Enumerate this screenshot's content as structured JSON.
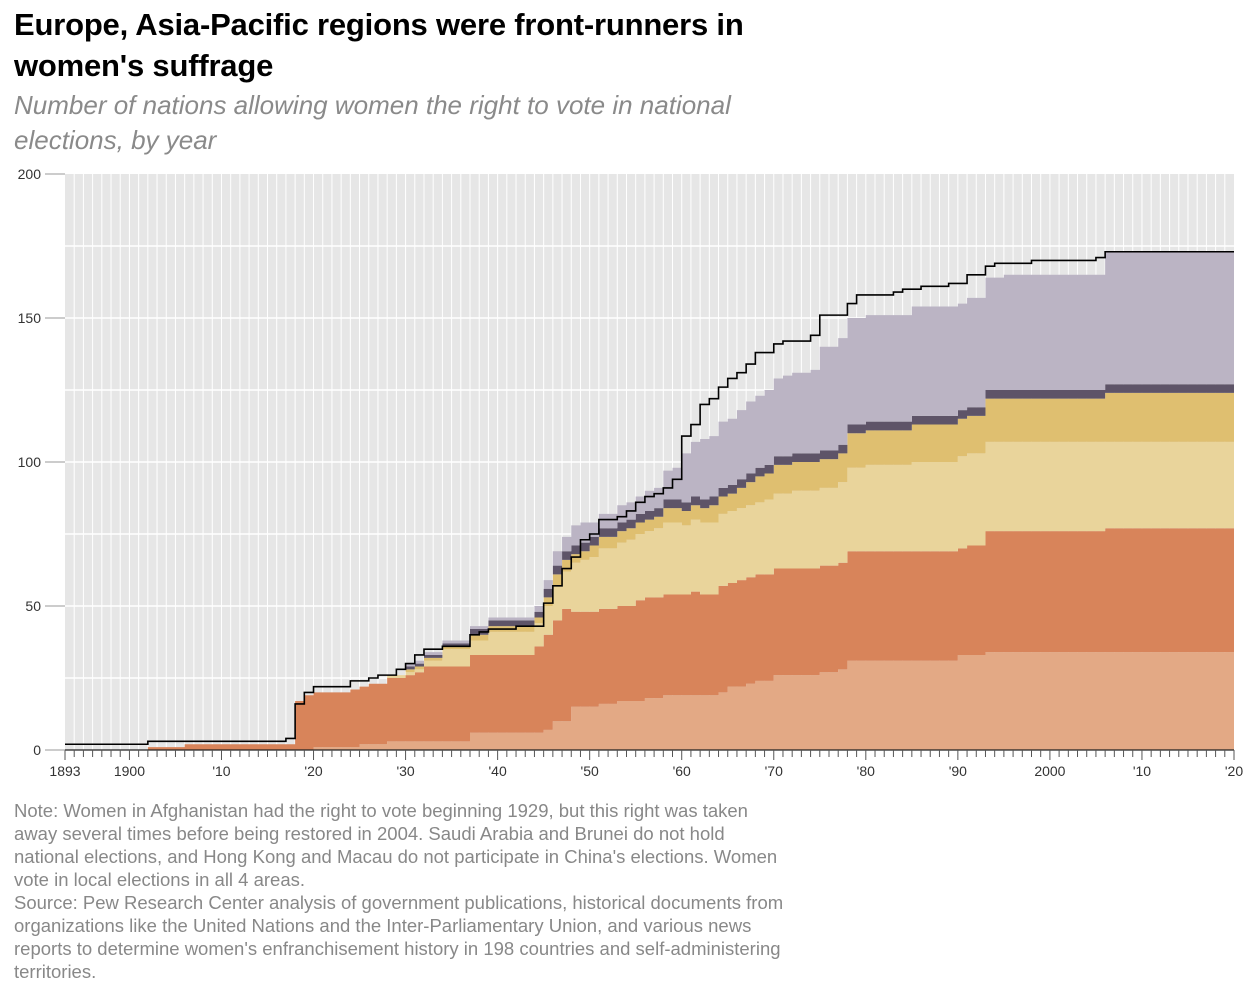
{
  "title": "Europe, Asia-Pacific regions were front-runners in women's suffrage",
  "subtitle": "Number of nations allowing women the right to vote in national elections, by year",
  "note": "Note: Women in Afghanistan had the right to vote beginning 1929, but this right was taken away several times before being restored in 2004. Saudi Arabia and Brunei do not hold national elections, and Hong Kong and Macau do not participate in China's elections. Women vote in local elections in all 4 areas.",
  "source": "Source: Pew Research Center analysis of government publications, historical documents from organizations like the United Nations and the Inter-Parliamentary Union, and various news reports to determine women's enfranchisement history in 198 countries and self-administering territories.",
  "colors": {
    "background": "#e6e6e6",
    "grid": "#ffffff",
    "series": [
      "#e3a985",
      "#d8845a",
      "#e9d49b",
      "#dfbf70",
      "#5e5468",
      "#bbb4c4"
    ],
    "total_line": "#000000"
  },
  "chart_data": {
    "type": "area",
    "stacked": true,
    "step": true,
    "xlim": [
      1893,
      2020
    ],
    "ylim": [
      0,
      200
    ],
    "x_ticks": [
      1893,
      1900,
      1910,
      1920,
      1930,
      1940,
      1950,
      1960,
      1970,
      1980,
      1990,
      2000,
      2010,
      2020
    ],
    "x_tick_labels": [
      "1893",
      "1900",
      "'10",
      "'20",
      "'30",
      "'40",
      "'50",
      "'60",
      "'70",
      "'80",
      "'90",
      "2000",
      "'10",
      "'20"
    ],
    "y_ticks": [
      0,
      50,
      100,
      150,
      200
    ],
    "y_tick_labels": [
      "0",
      "50",
      "100",
      "150",
      "200"
    ],
    "grid": true,
    "series_breakpoints": [
      {
        "points": [
          [
            1893,
            0
          ],
          [
            1920,
            1
          ],
          [
            1925,
            2
          ],
          [
            1928,
            3
          ],
          [
            1937,
            6
          ],
          [
            1945,
            7
          ],
          [
            1946,
            10
          ],
          [
            1948,
            15
          ],
          [
            1951,
            16
          ],
          [
            1953,
            17
          ],
          [
            1956,
            18
          ],
          [
            1958,
            19
          ],
          [
            1964,
            20
          ],
          [
            1965,
            22
          ],
          [
            1967,
            23
          ],
          [
            1968,
            24
          ],
          [
            1970,
            26
          ],
          [
            1975,
            27
          ],
          [
            1977,
            28
          ],
          [
            1978,
            31
          ],
          [
            1990,
            33
          ],
          [
            1993,
            34
          ],
          [
            2020,
            34
          ]
        ]
      },
      {
        "points": [
          [
            1893,
            0
          ],
          [
            1902,
            1
          ],
          [
            1906,
            2
          ],
          [
            1918,
            17
          ],
          [
            1919,
            19
          ],
          [
            1924,
            20
          ],
          [
            1926,
            21
          ],
          [
            1928,
            22
          ],
          [
            1930,
            23
          ],
          [
            1931,
            24
          ],
          [
            1932,
            26
          ],
          [
            1937,
            27
          ],
          [
            1944,
            30
          ],
          [
            1945,
            33
          ],
          [
            1946,
            35
          ],
          [
            1947,
            39
          ],
          [
            1948,
            33
          ],
          [
            1949,
            33
          ],
          [
            1950,
            33
          ],
          [
            1951,
            33
          ],
          [
            1953,
            33
          ],
          [
            1955,
            35
          ],
          [
            1956,
            35
          ],
          [
            1958,
            35
          ],
          [
            1961,
            36
          ],
          [
            1962,
            35
          ],
          [
            1964,
            37
          ],
          [
            1965,
            36
          ],
          [
            1966,
            37
          ],
          [
            1967,
            37
          ],
          [
            1969,
            37
          ],
          [
            1971,
            37
          ],
          [
            1978,
            38
          ],
          [
            1990,
            37
          ],
          [
            1991,
            38
          ],
          [
            1993,
            42
          ],
          [
            2006,
            43
          ],
          [
            2020,
            43
          ]
        ]
      },
      {
        "points": [
          [
            1893,
            0
          ],
          [
            1928,
            1
          ],
          [
            1929,
            1
          ],
          [
            1932,
            2
          ],
          [
            1934,
            6
          ],
          [
            1937,
            5
          ],
          [
            1939,
            8
          ],
          [
            1944,
            8
          ],
          [
            1945,
            10
          ],
          [
            1946,
            12
          ],
          [
            1947,
            13
          ],
          [
            1948,
            17
          ],
          [
            1949,
            18
          ],
          [
            1950,
            19
          ],
          [
            1951,
            21
          ],
          [
            1953,
            22
          ],
          [
            1954,
            23
          ],
          [
            1955,
            23
          ],
          [
            1957,
            24
          ],
          [
            1958,
            25
          ],
          [
            1960,
            24
          ],
          [
            1961,
            25
          ],
          [
            1963,
            25
          ],
          [
            1964,
            25
          ],
          [
            1967,
            25
          ],
          [
            1969,
            26
          ],
          [
            1972,
            27
          ],
          [
            1977,
            28
          ],
          [
            1978,
            29
          ],
          [
            1980,
            30
          ],
          [
            1985,
            31
          ],
          [
            1990,
            32
          ],
          [
            1993,
            31
          ],
          [
            2006,
            30
          ],
          [
            2020,
            30
          ]
        ]
      },
      {
        "points": [
          [
            1893,
            0
          ],
          [
            1929,
            0
          ],
          [
            1930,
            1
          ],
          [
            1932,
            1
          ],
          [
            1937,
            2
          ],
          [
            1939,
            2
          ],
          [
            1944,
            2
          ],
          [
            1945,
            3
          ],
          [
            1946,
            4
          ],
          [
            1948,
            3
          ],
          [
            1950,
            4
          ],
          [
            1951,
            4
          ],
          [
            1954,
            4
          ],
          [
            1958,
            5
          ],
          [
            1960,
            5
          ],
          [
            1961,
            5
          ],
          [
            1963,
            6
          ],
          [
            1964,
            6
          ],
          [
            1966,
            7
          ],
          [
            1967,
            8
          ],
          [
            1968,
            9
          ],
          [
            1970,
            10
          ],
          [
            1975,
            10
          ],
          [
            1977,
            10
          ],
          [
            1978,
            12
          ],
          [
            1985,
            13
          ],
          [
            1990,
            13
          ],
          [
            1993,
            15
          ],
          [
            2006,
            17
          ],
          [
            2020,
            17
          ]
        ]
      },
      {
        "points": [
          [
            1893,
            0
          ],
          [
            1930,
            1
          ],
          [
            1933,
            1
          ],
          [
            1937,
            2
          ],
          [
            1944,
            2
          ],
          [
            1945,
            3
          ],
          [
            1960,
            3
          ],
          [
            1977,
            3
          ],
          [
            2020,
            3
          ]
        ]
      },
      {
        "points": [
          [
            1893,
            0
          ],
          [
            1930,
            1
          ],
          [
            1937,
            1
          ],
          [
            1939,
            1
          ],
          [
            1944,
            2
          ],
          [
            1945,
            3
          ],
          [
            1946,
            5
          ],
          [
            1947,
            5
          ],
          [
            1948,
            7
          ],
          [
            1950,
            5
          ],
          [
            1951,
            5
          ],
          [
            1953,
            6
          ],
          [
            1955,
            6
          ],
          [
            1956,
            7
          ],
          [
            1958,
            10
          ],
          [
            1959,
            11
          ],
          [
            1960,
            17
          ],
          [
            1961,
            19
          ],
          [
            1962,
            21
          ],
          [
            1963,
            21
          ],
          [
            1964,
            23
          ],
          [
            1965,
            23
          ],
          [
            1966,
            24
          ],
          [
            1967,
            25
          ],
          [
            1968,
            25
          ],
          [
            1969,
            26
          ],
          [
            1970,
            27
          ],
          [
            1971,
            28
          ],
          [
            1974,
            29
          ],
          [
            1975,
            36
          ],
          [
            1977,
            37
          ],
          [
            1978,
            37
          ],
          [
            1980,
            37
          ],
          [
            1985,
            38
          ],
          [
            1990,
            37
          ],
          [
            1991,
            38
          ],
          [
            1993,
            39
          ],
          [
            1995,
            40
          ],
          [
            2006,
            46
          ],
          [
            2020,
            46
          ]
        ]
      }
    ],
    "total": {
      "points": [
        [
          1893,
          2
        ],
        [
          1902,
          3
        ],
        [
          1906,
          3
        ],
        [
          1917,
          4
        ],
        [
          1918,
          16
        ],
        [
          1919,
          20
        ],
        [
          1920,
          22
        ],
        [
          1924,
          24
        ],
        [
          1926,
          25
        ],
        [
          1927,
          26
        ],
        [
          1929,
          28
        ],
        [
          1930,
          30
        ],
        [
          1931,
          33
        ],
        [
          1932,
          35
        ],
        [
          1934,
          36
        ],
        [
          1937,
          40
        ],
        [
          1938,
          41
        ],
        [
          1939,
          42
        ],
        [
          1942,
          43
        ],
        [
          1945,
          51
        ],
        [
          1946,
          57
        ],
        [
          1947,
          63
        ],
        [
          1948,
          67
        ],
        [
          1949,
          73
        ],
        [
          1950,
          75
        ],
        [
          1951,
          80
        ],
        [
          1953,
          81
        ],
        [
          1954,
          83
        ],
        [
          1955,
          86
        ],
        [
          1956,
          88
        ],
        [
          1957,
          89
        ],
        [
          1958,
          91
        ],
        [
          1959,
          94
        ],
        [
          1960,
          109
        ],
        [
          1961,
          113
        ],
        [
          1962,
          120
        ],
        [
          1963,
          122
        ],
        [
          1964,
          126
        ],
        [
          1965,
          129
        ],
        [
          1966,
          131
        ],
        [
          1967,
          134
        ],
        [
          1968,
          138
        ],
        [
          1970,
          141
        ],
        [
          1971,
          142
        ],
        [
          1974,
          144
        ],
        [
          1975,
          151
        ],
        [
          1978,
          155
        ],
        [
          1979,
          158
        ],
        [
          1983,
          159
        ],
        [
          1984,
          160
        ],
        [
          1986,
          161
        ],
        [
          1989,
          162
        ],
        [
          1991,
          165
        ],
        [
          1993,
          168
        ],
        [
          1994,
          169
        ],
        [
          1998,
          170
        ],
        [
          2005,
          171
        ],
        [
          2006,
          173
        ],
        [
          2020,
          173
        ]
      ]
    }
  }
}
